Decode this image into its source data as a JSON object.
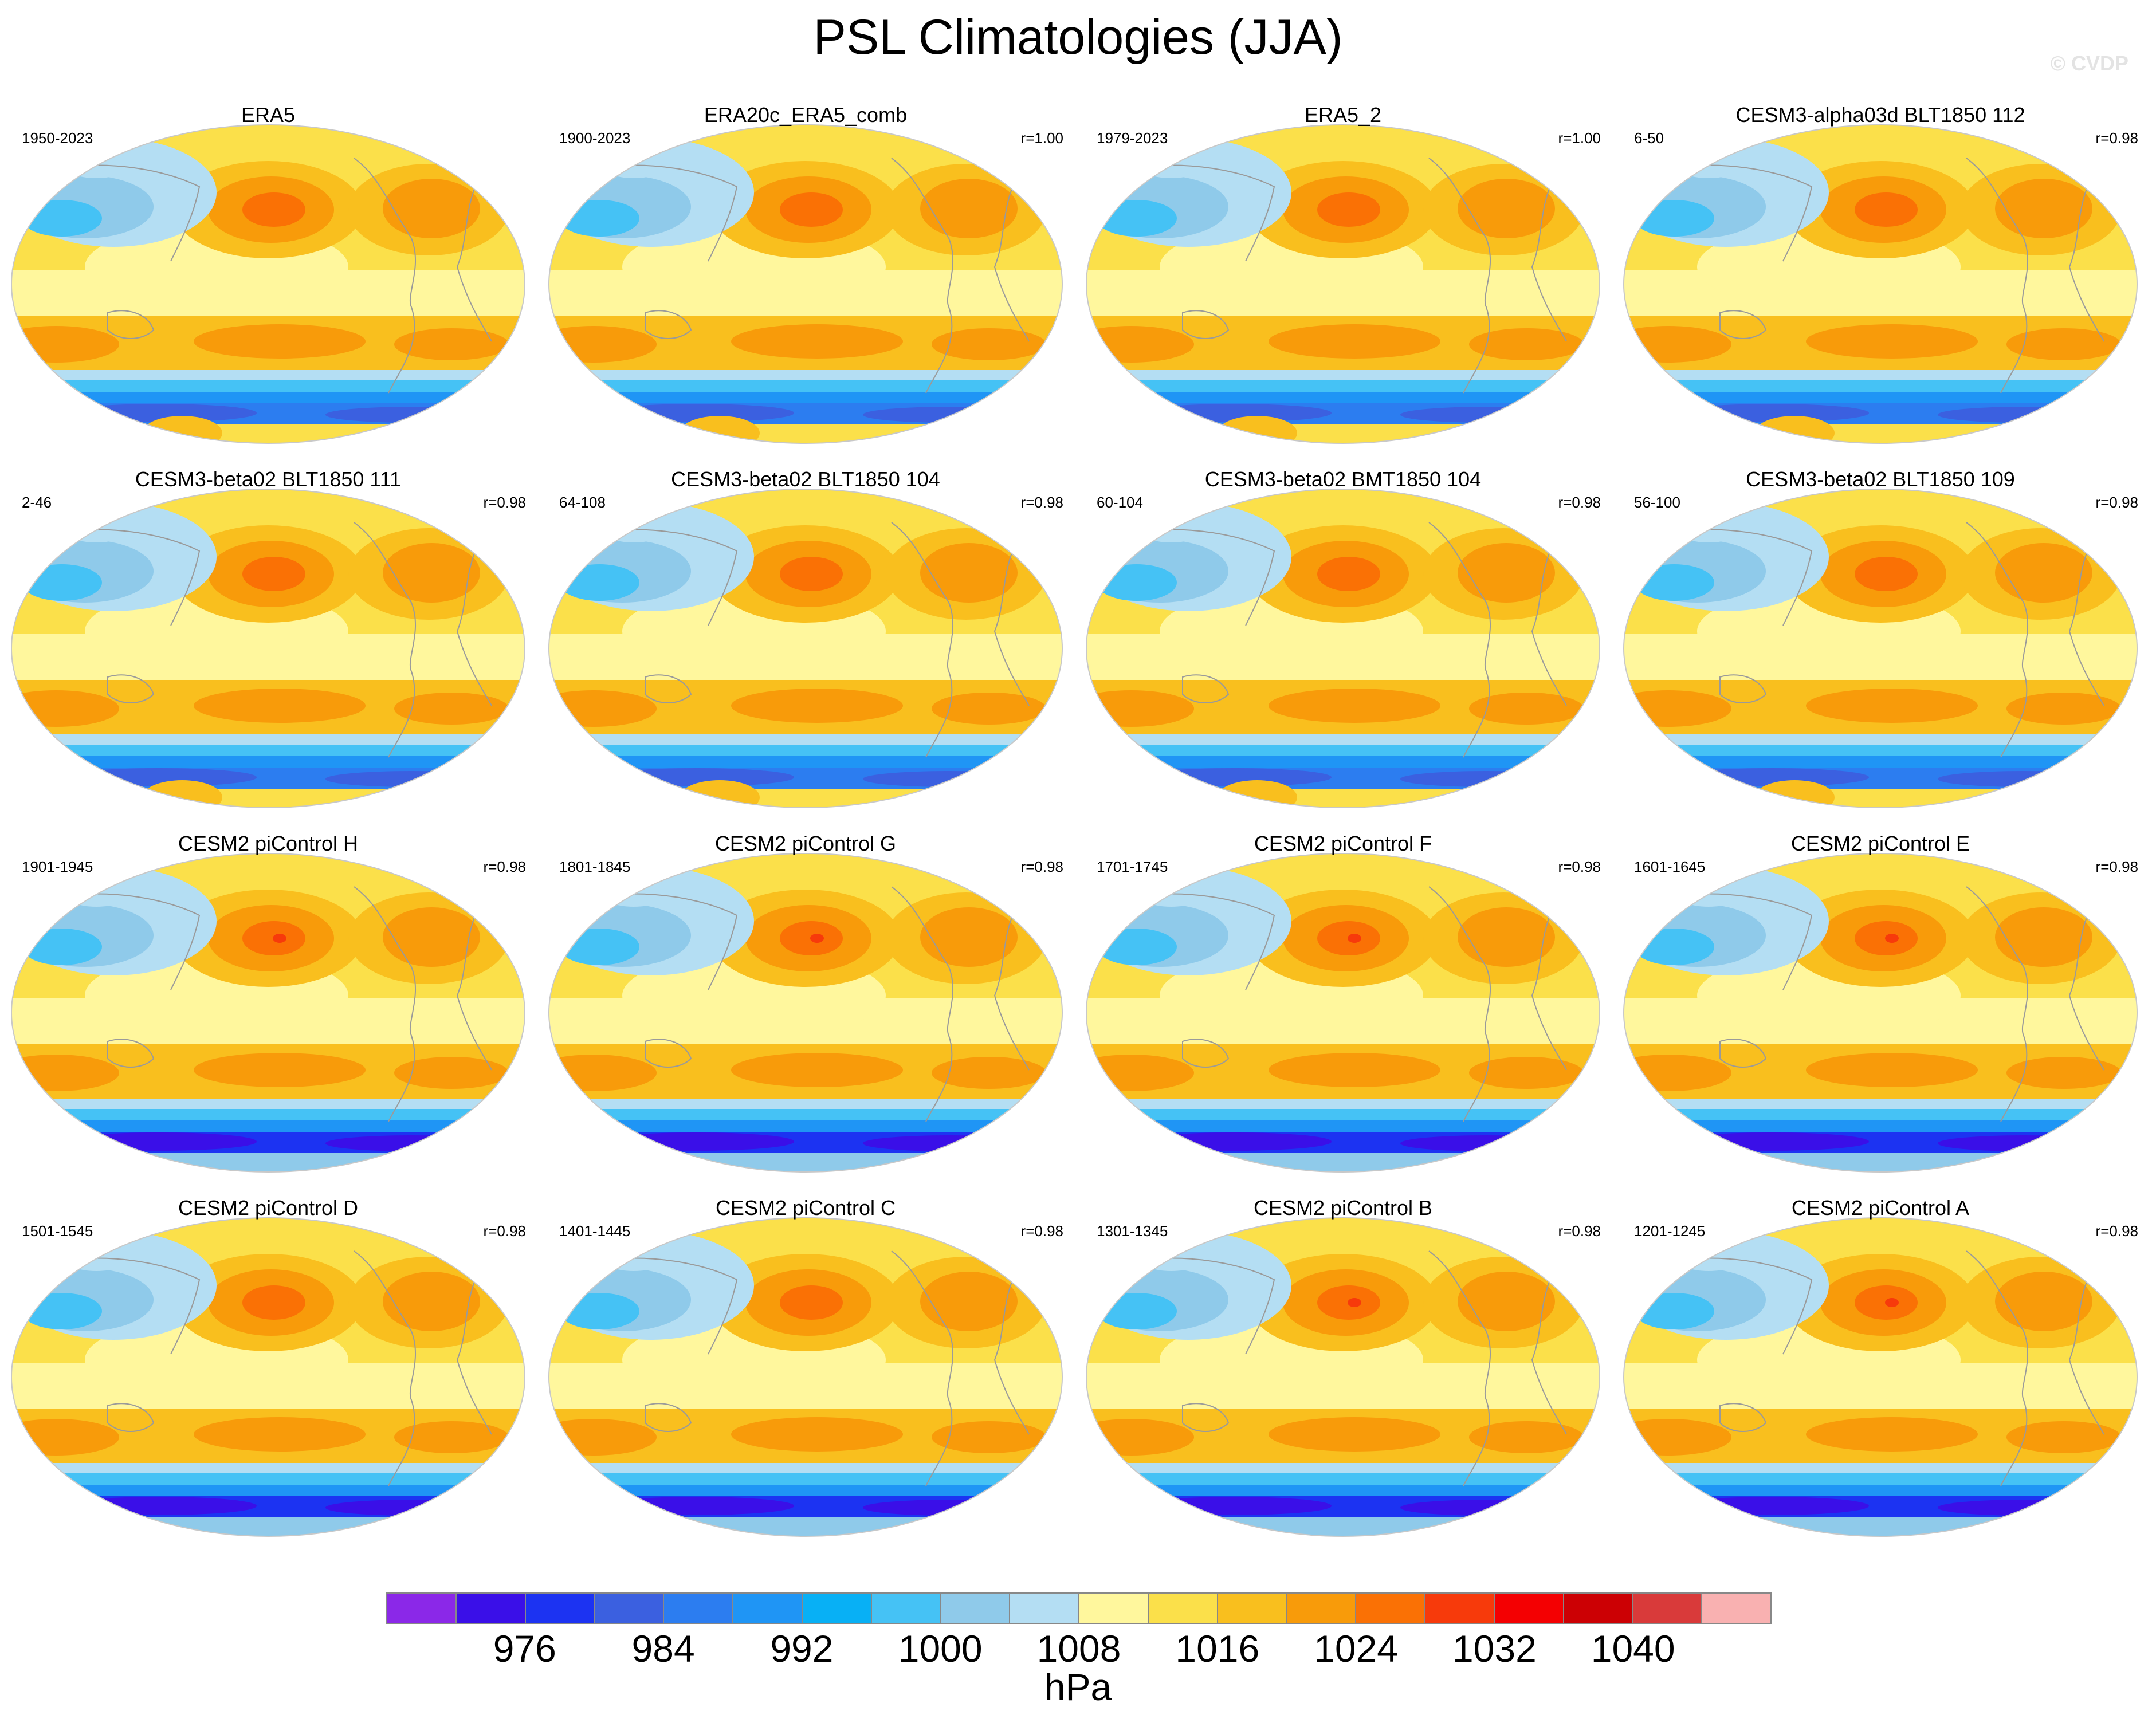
{
  "title": "PSL Climatologies (JJA)",
  "watermark": "© CVDP",
  "units": "hPa",
  "colorbar": {
    "tick_labels": [
      "976",
      "984",
      "992",
      "1000",
      "1008",
      "1016",
      "1024",
      "1032",
      "1040"
    ],
    "colors": [
      "#8b28e8",
      "#3a0fe8",
      "#1c33f2",
      "#3b60e0",
      "#2c7df0",
      "#1f95f5",
      "#08b0f5",
      "#45c2f5",
      "#8fcaea",
      "#b4def3",
      "#fff79d",
      "#fbe04a",
      "#f9bf1e",
      "#f89b0a",
      "#fa7105",
      "#f73a0b",
      "#f40002",
      "#cc0004",
      "#d93a3a",
      "#f9b1b1"
    ]
  },
  "panels": [
    {
      "title": "ERA5",
      "years": "1950-2023",
      "corr": "",
      "style": "obs",
      "hasHighCore": false
    },
    {
      "title": "ERA20c_ERA5_comb",
      "years": "1900-2023",
      "corr": "r=1.00",
      "style": "obs",
      "hasHighCore": false
    },
    {
      "title": "ERA5_2",
      "years": "1979-2023",
      "corr": "r=1.00",
      "style": "obs",
      "hasHighCore": false
    },
    {
      "title": "CESM3-alpha03d BLT1850 112",
      "years": "6-50",
      "corr": "r=0.98",
      "style": "obs",
      "hasHighCore": false
    },
    {
      "title": "CESM3-beta02 BLT1850 111",
      "years": "2-46",
      "corr": "r=0.98",
      "style": "obs",
      "hasHighCore": false
    },
    {
      "title": "CESM3-beta02 BLT1850 104",
      "years": "64-108",
      "corr": "r=0.98",
      "style": "obs",
      "hasHighCore": false
    },
    {
      "title": "CESM3-beta02 BMT1850 104",
      "years": "60-104",
      "corr": "r=0.98",
      "style": "obs",
      "hasHighCore": false
    },
    {
      "title": "CESM3-beta02 BLT1850 109",
      "years": "56-100",
      "corr": "r=0.98",
      "style": "obs",
      "hasHighCore": false
    },
    {
      "title": "CESM2 piControl H",
      "years": "1901-1945",
      "corr": "r=0.98",
      "style": "model",
      "hasHighCore": true
    },
    {
      "title": "CESM2 piControl G",
      "years": "1801-1845",
      "corr": "r=0.98",
      "style": "model",
      "hasHighCore": true
    },
    {
      "title": "CESM2 piControl F",
      "years": "1701-1745",
      "corr": "r=0.98",
      "style": "model",
      "hasHighCore": true
    },
    {
      "title": "CESM2 piControl E",
      "years": "1601-1645",
      "corr": "r=0.98",
      "style": "model",
      "hasHighCore": true
    },
    {
      "title": "CESM2 piControl D",
      "years": "1501-1545",
      "corr": "r=0.98",
      "style": "model",
      "hasHighCore": false
    },
    {
      "title": "CESM2 piControl C",
      "years": "1401-1445",
      "corr": "r=0.98",
      "style": "model",
      "hasHighCore": false
    },
    {
      "title": "CESM2 piControl B",
      "years": "1301-1345",
      "corr": "r=0.98",
      "style": "model",
      "hasHighCore": true
    },
    {
      "title": "CESM2 piControl A",
      "years": "1201-1245",
      "corr": "r=0.98",
      "style": "model",
      "hasHighCore": true
    }
  ]
}
